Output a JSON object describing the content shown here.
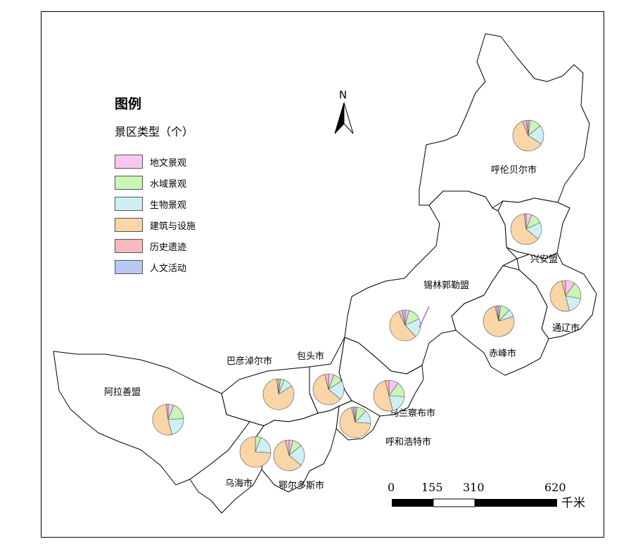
{
  "legend": {
    "title": "图例",
    "subtitle": "景区类型（个）",
    "items": [
      {
        "label": "地文景观",
        "color": "#f9c6f2"
      },
      {
        "label": "水域景观",
        "color": "#c9f5b5"
      },
      {
        "label": "生物景观",
        "color": "#cdf0f5"
      },
      {
        "label": "建筑与设施",
        "color": "#f9d5a8"
      },
      {
        "label": "历史遗迹",
        "color": "#f6b9bd"
      },
      {
        "label": "人文活动",
        "color": "#b8c8f5"
      }
    ]
  },
  "north_arrow": {
    "label": "N"
  },
  "scale_bar": {
    "ticks": [
      "0",
      "155",
      "310",
      "620"
    ],
    "unit": "千米"
  },
  "regions": [
    {
      "name": "呼伦贝尔市",
      "shares": [
        0.02,
        0.12,
        0.2,
        0.6,
        0.04,
        0.02
      ]
    },
    {
      "name": "兴安盟",
      "shares": [
        0.06,
        0.12,
        0.18,
        0.62,
        0.02,
        0.0
      ]
    },
    {
      "name": "通辽市",
      "shares": [
        0.1,
        0.18,
        0.18,
        0.5,
        0.04,
        0.0
      ]
    },
    {
      "name": "赤峰市",
      "shares": [
        0.02,
        0.1,
        0.08,
        0.76,
        0.02,
        0.02
      ]
    },
    {
      "name": "锡林郭勒盟",
      "shares": [
        0.04,
        0.14,
        0.2,
        0.55,
        0.04,
        0.03
      ]
    },
    {
      "name": "乌兰察布市",
      "shares": [
        0.1,
        0.16,
        0.2,
        0.5,
        0.04,
        0.0
      ]
    },
    {
      "name": "呼和浩特市",
      "shares": [
        0.02,
        0.1,
        0.14,
        0.7,
        0.02,
        0.02
      ]
    },
    {
      "name": "包头市",
      "shares": [
        0.06,
        0.1,
        0.2,
        0.6,
        0.04,
        0.0
      ]
    },
    {
      "name": "巴彦淖尔市",
      "shares": [
        0.02,
        0.04,
        0.1,
        0.82,
        0.02,
        0.0
      ]
    },
    {
      "name": "鄂尔多斯市",
      "shares": [
        0.04,
        0.1,
        0.22,
        0.6,
        0.04,
        0.0
      ]
    },
    {
      "name": "乌海市",
      "shares": [
        0.0,
        0.06,
        0.2,
        0.74,
        0.0,
        0.0
      ]
    },
    {
      "name": "阿拉善盟",
      "shares": [
        0.06,
        0.18,
        0.22,
        0.52,
        0.02,
        0.0
      ]
    }
  ]
}
